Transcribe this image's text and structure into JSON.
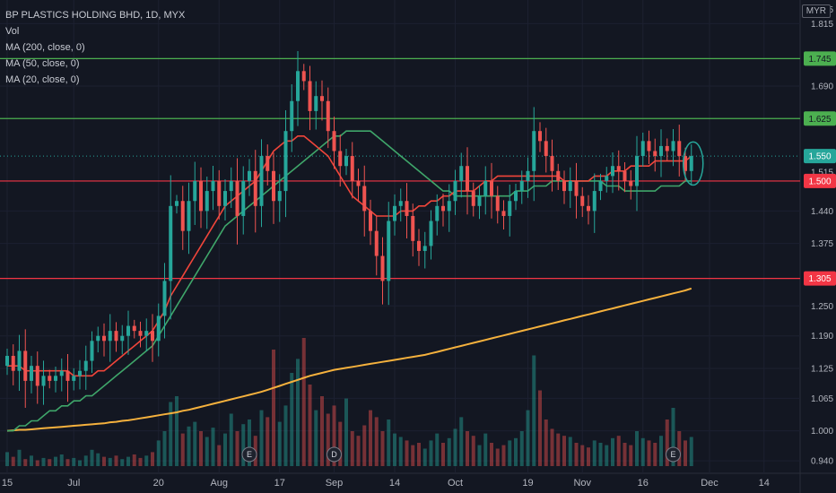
{
  "legend": {
    "title": "BP PLASTICS HOLDING BHD, 1D, MYX",
    "vol": "Vol",
    "ma200": "MA (200, close, 0)",
    "ma50": "MA (50, close, 0)",
    "ma20": "MA (20, close, 0)"
  },
  "currency": "MYR",
  "colors": {
    "up": "#26a69a",
    "down": "#ef5350",
    "ma20": "#f0453a",
    "ma50": "#3fa66a",
    "ma200": "#f5b13d",
    "support": "#f23645",
    "resistance": "#4caf50",
    "current": "#26a69a"
  },
  "chart_data": {
    "type": "candlestick",
    "title": "BP PLASTICS HOLDING BHD, 1D, MYX",
    "y_ticks": [
      "0.940",
      "1.000",
      "1.065",
      "1.125",
      "1.190",
      "1.250",
      "1.375",
      "1.440",
      "1.690",
      "1.815"
    ],
    "y_partial_tick": "1.515",
    "ylim": [
      0.915,
      1.83
    ],
    "x_ticks": [
      "15",
      "Jul",
      "20",
      "Aug",
      "17",
      "Sep",
      "14",
      "Oct",
      "19",
      "Nov",
      "16",
      "Dec",
      "14"
    ],
    "x_tick_positions": [
      0,
      11,
      25,
      35,
      45,
      54,
      64,
      74,
      86,
      95,
      105,
      116,
      125
    ],
    "n_bars": 114,
    "hlines": [
      {
        "label": "1.745",
        "value": 1.745,
        "kind": "resistance"
      },
      {
        "label": "1.625",
        "value": 1.625,
        "kind": "resistance"
      },
      {
        "label": "1.500",
        "value": 1.5,
        "kind": "support"
      },
      {
        "label": "1.305",
        "value": 1.305,
        "kind": "support"
      }
    ],
    "current_price": {
      "label": "1.550",
      "value": 1.55
    },
    "events": [
      {
        "label": "E",
        "bar": 40
      },
      {
        "label": "D",
        "bar": 54
      },
      {
        "label": "E",
        "bar": 110
      }
    ],
    "close": [
      1.15,
      1.12,
      1.16,
      1.1,
      1.13,
      1.09,
      1.11,
      1.1,
      1.11,
      1.12,
      1.1,
      1.11,
      1.12,
      1.14,
      1.18,
      1.19,
      1.18,
      1.2,
      1.18,
      1.19,
      1.21,
      1.2,
      1.19,
      1.2,
      1.18,
      1.23,
      1.3,
      1.45,
      1.46,
      1.4,
      1.46,
      1.5,
      1.44,
      1.48,
      1.5,
      1.45,
      1.48,
      1.5,
      1.43,
      1.5,
      1.52,
      1.45,
      1.55,
      1.52,
      1.46,
      1.48,
      1.6,
      1.66,
      1.72,
      1.7,
      1.64,
      1.67,
      1.66,
      1.6,
      1.56,
      1.53,
      1.55,
      1.5,
      1.49,
      1.44,
      1.4,
      1.35,
      1.3,
      1.42,
      1.45,
      1.46,
      1.43,
      1.38,
      1.36,
      1.37,
      1.42,
      1.45,
      1.44,
      1.46,
      1.5,
      1.53,
      1.48,
      1.45,
      1.47,
      1.5,
      1.47,
      1.44,
      1.43,
      1.46,
      1.48,
      1.5,
      1.52,
      1.6,
      1.58,
      1.55,
      1.52,
      1.5,
      1.48,
      1.5,
      1.47,
      1.45,
      1.44,
      1.48,
      1.5,
      1.51,
      1.53,
      1.52,
      1.5,
      1.49,
      1.55,
      1.58,
      1.56,
      1.55,
      1.57,
      1.56,
      1.58,
      1.55,
      1.52,
      1.55
    ],
    "ma20": [
      1.13,
      1.13,
      1.13,
      1.12,
      1.12,
      1.12,
      1.12,
      1.12,
      1.12,
      1.12,
      1.12,
      1.11,
      1.11,
      1.11,
      1.11,
      1.12,
      1.12,
      1.13,
      1.14,
      1.15,
      1.16,
      1.17,
      1.18,
      1.19,
      1.2,
      1.22,
      1.24,
      1.27,
      1.29,
      1.31,
      1.33,
      1.35,
      1.37,
      1.39,
      1.41,
      1.43,
      1.45,
      1.46,
      1.47,
      1.48,
      1.49,
      1.5,
      1.52,
      1.54,
      1.56,
      1.57,
      1.58,
      1.58,
      1.59,
      1.59,
      1.58,
      1.57,
      1.56,
      1.55,
      1.53,
      1.51,
      1.49,
      1.47,
      1.46,
      1.45,
      1.44,
      1.43,
      1.43,
      1.43,
      1.43,
      1.44,
      1.44,
      1.44,
      1.45,
      1.45,
      1.46,
      1.46,
      1.47,
      1.47,
      1.48,
      1.48,
      1.48,
      1.48,
      1.49,
      1.5,
      1.5,
      1.51,
      1.51,
      1.51,
      1.51,
      1.51,
      1.51,
      1.51,
      1.51,
      1.51,
      1.51,
      1.51,
      1.5,
      1.5,
      1.5,
      1.5,
      1.5,
      1.51,
      1.51,
      1.51,
      1.52,
      1.52,
      1.52,
      1.53,
      1.53,
      1.53,
      1.53,
      1.54,
      1.54,
      1.54,
      1.54,
      1.54,
      1.54,
      1.55
    ],
    "ma50": [
      1.0,
      1.0,
      1.01,
      1.01,
      1.02,
      1.02,
      1.03,
      1.04,
      1.04,
      1.05,
      1.05,
      1.06,
      1.06,
      1.07,
      1.07,
      1.08,
      1.09,
      1.1,
      1.11,
      1.12,
      1.13,
      1.14,
      1.15,
      1.16,
      1.17,
      1.19,
      1.21,
      1.23,
      1.25,
      1.27,
      1.29,
      1.31,
      1.33,
      1.35,
      1.37,
      1.39,
      1.41,
      1.42,
      1.43,
      1.44,
      1.45,
      1.46,
      1.47,
      1.48,
      1.49,
      1.5,
      1.51,
      1.52,
      1.53,
      1.54,
      1.55,
      1.56,
      1.57,
      1.58,
      1.59,
      1.59,
      1.6,
      1.6,
      1.6,
      1.6,
      1.6,
      1.59,
      1.58,
      1.57,
      1.56,
      1.55,
      1.54,
      1.53,
      1.52,
      1.51,
      1.5,
      1.49,
      1.48,
      1.48,
      1.47,
      1.47,
      1.47,
      1.47,
      1.47,
      1.47,
      1.47,
      1.47,
      1.47,
      1.47,
      1.48,
      1.48,
      1.48,
      1.49,
      1.49,
      1.49,
      1.5,
      1.5,
      1.5,
      1.5,
      1.5,
      1.5,
      1.5,
      1.5,
      1.5,
      1.49,
      1.49,
      1.49,
      1.48,
      1.48,
      1.48,
      1.48,
      1.48,
      1.48,
      1.49,
      1.49,
      1.49,
      1.49,
      1.5,
      1.5
    ],
    "ma200": [
      1.0,
      1.001,
      1.002,
      1.002,
      1.003,
      1.004,
      1.005,
      1.006,
      1.007,
      1.008,
      1.009,
      1.01,
      1.011,
      1.012,
      1.013,
      1.014,
      1.015,
      1.017,
      1.018,
      1.02,
      1.021,
      1.023,
      1.025,
      1.027,
      1.029,
      1.031,
      1.033,
      1.035,
      1.037,
      1.04,
      1.042,
      1.045,
      1.048,
      1.051,
      1.054,
      1.057,
      1.06,
      1.063,
      1.066,
      1.069,
      1.072,
      1.075,
      1.078,
      1.082,
      1.086,
      1.09,
      1.094,
      1.098,
      1.102,
      1.106,
      1.11,
      1.113,
      1.116,
      1.119,
      1.122,
      1.124,
      1.126,
      1.128,
      1.13,
      1.132,
      1.134,
      1.136,
      1.138,
      1.14,
      1.142,
      1.144,
      1.146,
      1.148,
      1.15,
      1.152,
      1.155,
      1.158,
      1.161,
      1.164,
      1.167,
      1.17,
      1.173,
      1.176,
      1.179,
      1.182,
      1.185,
      1.188,
      1.191,
      1.194,
      1.197,
      1.2,
      1.203,
      1.206,
      1.209,
      1.212,
      1.215,
      1.218,
      1.221,
      1.224,
      1.227,
      1.23,
      1.233,
      1.236,
      1.239,
      1.242,
      1.245,
      1.248,
      1.251,
      1.254,
      1.257,
      1.26,
      1.263,
      1.266,
      1.269,
      1.272,
      1.275,
      1.278,
      1.281,
      1.285
    ],
    "volume": [
      12,
      8,
      14,
      6,
      9,
      5,
      7,
      6,
      8,
      10,
      6,
      7,
      5,
      9,
      14,
      11,
      8,
      7,
      9,
      6,
      8,
      10,
      7,
      9,
      12,
      22,
      30,
      55,
      60,
      28,
      34,
      38,
      30,
      25,
      33,
      18,
      28,
      45,
      30,
      36,
      40,
      26,
      48,
      42,
      100,
      38,
      52,
      80,
      92,
      110,
      70,
      48,
      60,
      45,
      52,
      38,
      58,
      30,
      26,
      35,
      48,
      42,
      30,
      40,
      28,
      25,
      22,
      18,
      20,
      15,
      22,
      28,
      20,
      24,
      32,
      42,
      30,
      26,
      18,
      28,
      20,
      15,
      18,
      22,
      24,
      30,
      48,
      95,
      65,
      40,
      32,
      28,
      26,
      25,
      20,
      18,
      16,
      22,
      20,
      18,
      24,
      26,
      20,
      18,
      30,
      24,
      22,
      20,
      26,
      40,
      50,
      30,
      22,
      25
    ]
  }
}
